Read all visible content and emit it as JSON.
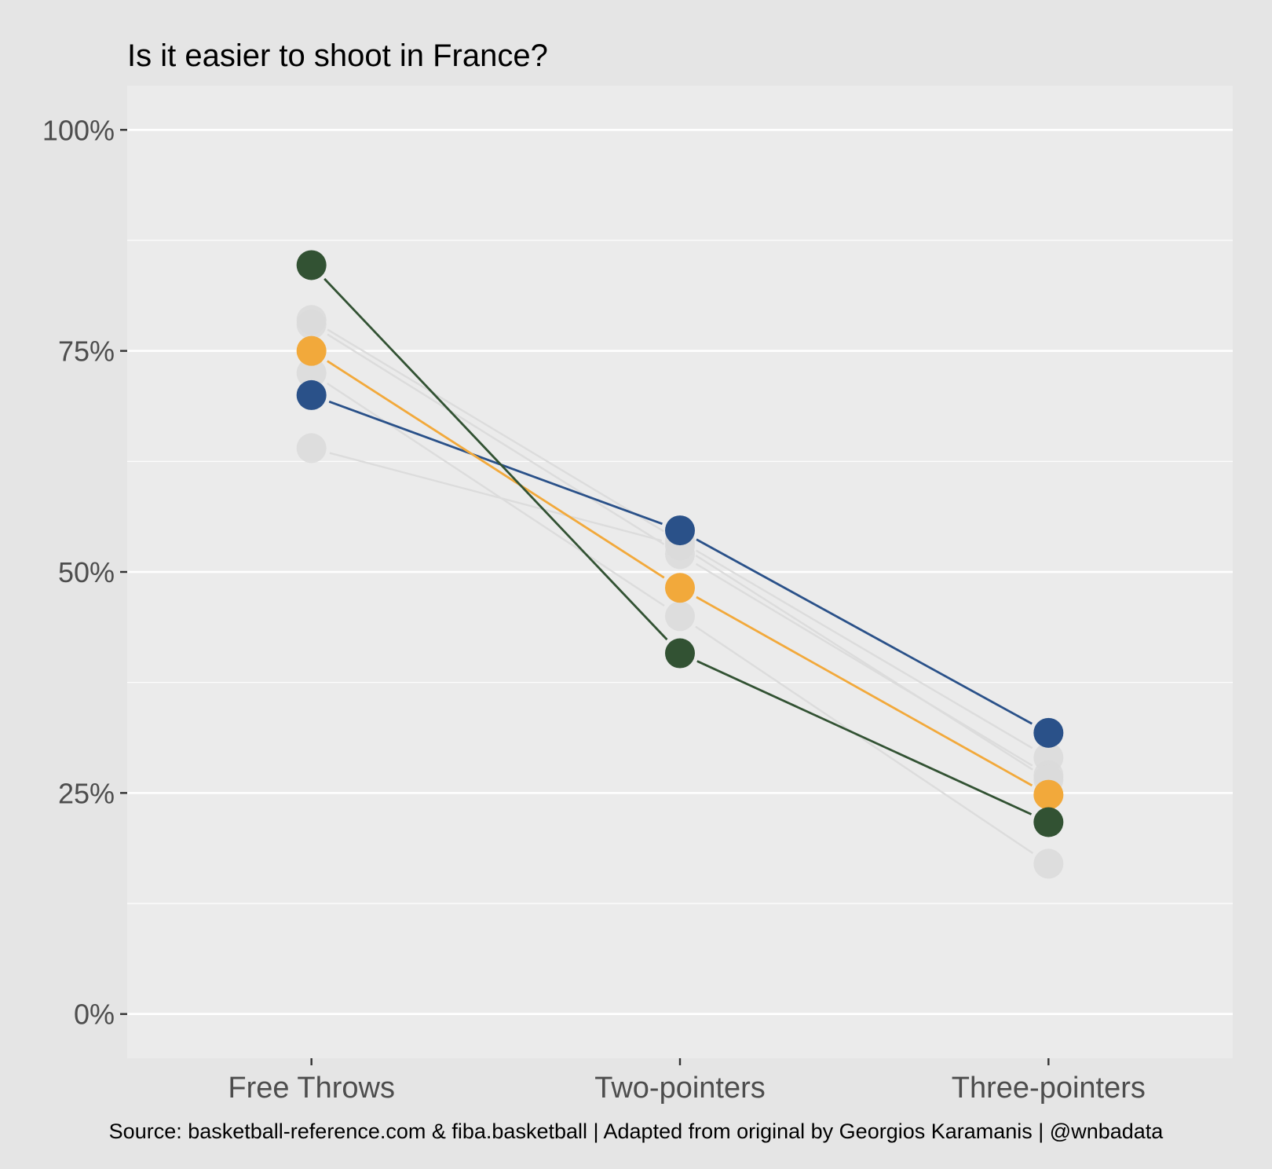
{
  "chart_data": {
    "type": "line",
    "title": "Is it easier to shoot in France?",
    "caption": "Source: basketball-reference.com & fiba.basketball | Adapted from original by Georgios Karamanis | @wnbadata",
    "xlabel": "",
    "ylabel": "",
    "categories": [
      "Free Throws",
      "Two-pointers",
      "Three-pointers"
    ],
    "ylim": [
      -0.05,
      1.05
    ],
    "y_ticks": [
      0,
      0.25,
      0.5,
      0.75,
      1.0
    ],
    "y_tick_labels": [
      "0%",
      "25%",
      "50%",
      "75%",
      "100%"
    ],
    "grid": true,
    "legend": "none",
    "series": [
      {
        "color": "#dadada",
        "values": [
          0.785,
          0.535,
          0.29
        ]
      },
      {
        "color": "#dadada",
        "values": [
          0.78,
          0.52,
          0.27
        ]
      },
      {
        "color": "#dadada",
        "values": [
          0.725,
          0.45,
          0.17
        ]
      },
      {
        "color": "#dadada",
        "values": [
          0.64,
          0.53,
          0.265
        ]
      },
      {
        "color": "#2a5189",
        "values": [
          0.7,
          0.547,
          0.318
        ]
      },
      {
        "color": "#f2a93b",
        "values": [
          0.75,
          0.482,
          0.248
        ]
      },
      {
        "color": "#325233",
        "values": [
          0.847,
          0.408,
          0.217
        ]
      }
    ]
  }
}
